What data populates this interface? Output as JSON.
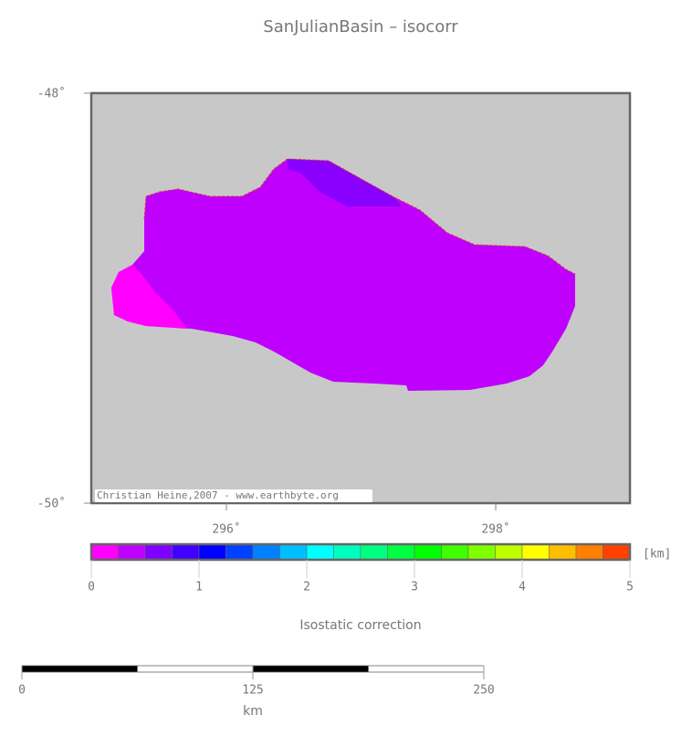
{
  "title": "SanJulianBasin – isocorr",
  "map": {
    "lat_labels": [
      "-48˚",
      "-50˚"
    ],
    "lon_labels": [
      "296˚",
      "298˚"
    ],
    "credit": "Christian Heine,2007 - www.earthbyte.org"
  },
  "colorbar": {
    "ticks": [
      0,
      1,
      2,
      3,
      4,
      5
    ],
    "colors": [
      "#ff00ff",
      "#bf00ff",
      "#8000ff",
      "#4000ff",
      "#0000ff",
      "#0040ff",
      "#0080ff",
      "#00bfff",
      "#00ffff",
      "#00ffbf",
      "#00ff80",
      "#00ff40",
      "#00ff00",
      "#40ff00",
      "#80ff00",
      "#bfff00",
      "#ffff00",
      "#ffbf00",
      "#ff8000",
      "#ff4000"
    ],
    "unit": "[km]",
    "label": "Isostatic correction"
  },
  "scalebar": {
    "ticks": [
      0,
      125,
      250
    ],
    "unit": "km"
  }
}
